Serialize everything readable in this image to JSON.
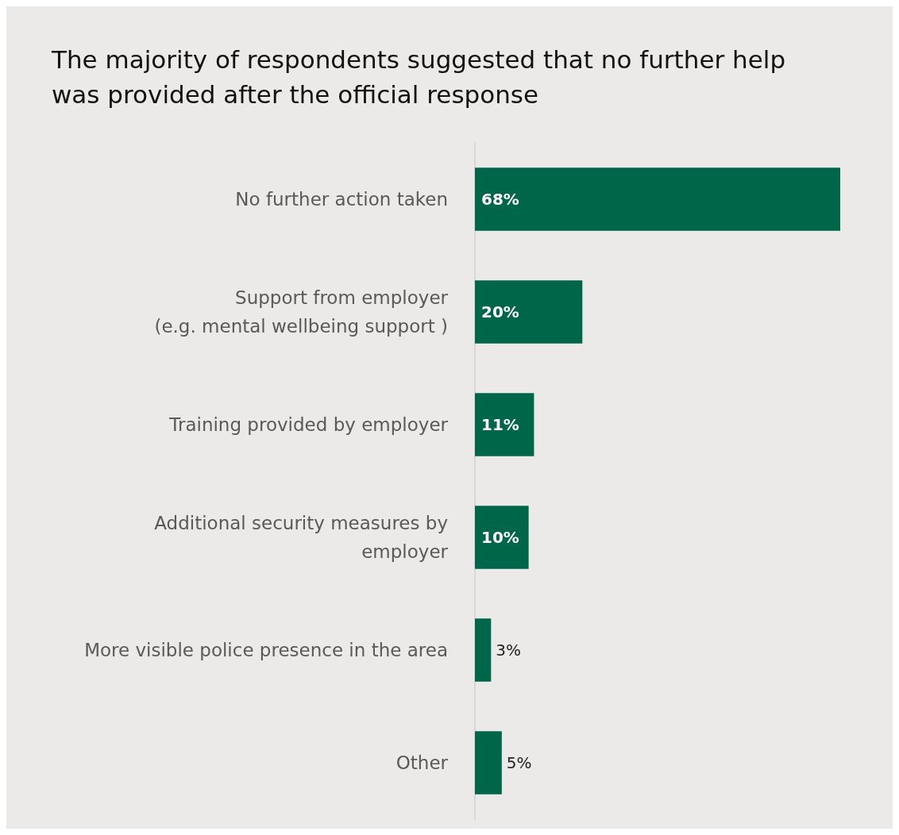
{
  "chart_data": {
    "type": "bar",
    "orientation": "horizontal",
    "title": "The majority of respondents suggested that no further help\nwas provided after the official response",
    "categories": [
      "No further action taken",
      "Support from employer\n(e.g. mental wellbeing support )",
      "Training provided by employer",
      "Additional security measures by\nemployer",
      "More visible police presence in the area",
      "Other"
    ],
    "values": [
      68,
      20,
      11,
      10,
      3,
      5
    ],
    "value_labels": [
      "68%",
      "20%",
      "11%",
      "10%",
      "3%",
      "5%"
    ],
    "color": "#00664a"
  }
}
